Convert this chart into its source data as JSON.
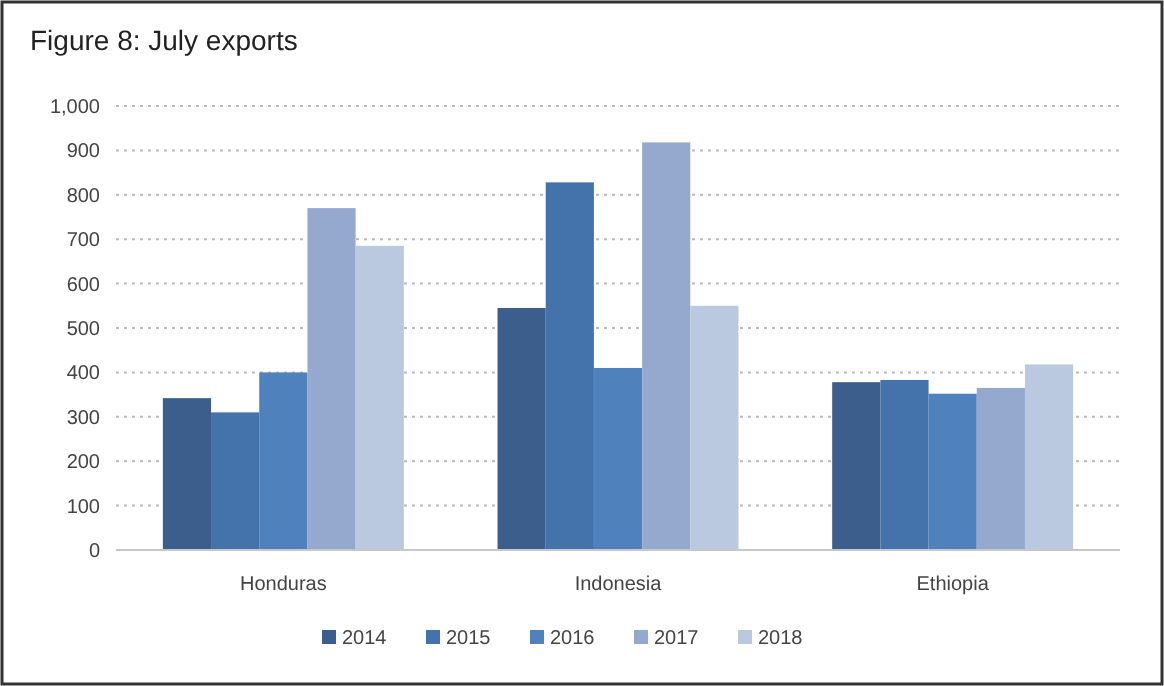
{
  "chart_data": {
    "type": "bar",
    "title": "Figure 8: July exports",
    "categories": [
      "Honduras",
      "Indonesia",
      "Ethiopia"
    ],
    "series": [
      {
        "name": "2014",
        "color": "#3b5e8c",
        "values": [
          342,
          545,
          378
        ]
      },
      {
        "name": "2015",
        "color": "#4472aa",
        "values": [
          310,
          828,
          383
        ]
      },
      {
        "name": "2016",
        "color": "#4f81bd",
        "values": [
          400,
          410,
          352
        ]
      },
      {
        "name": "2017",
        "color": "#95a9cf",
        "values": [
          770,
          918,
          365
        ]
      },
      {
        "name": "2018",
        "color": "#bac8e0",
        "values": [
          685,
          550,
          418
        ]
      }
    ],
    "ylim": [
      0,
      1000
    ],
    "yticks": [
      0,
      {
        "value": 100,
        "label": "100"
      },
      {
        "value": 200,
        "label": "200"
      },
      {
        "value": 300,
        "label": "300"
      },
      {
        "value": 400,
        "label": "400"
      },
      {
        "value": 500,
        "label": "500"
      },
      {
        "value": 600,
        "label": "600"
      },
      {
        "value": 700,
        "label": "700"
      },
      {
        "value": 800,
        "label": "800"
      },
      {
        "value": 900,
        "label": "900"
      },
      {
        "value": 1000,
        "label": "1,000"
      }
    ],
    "grid": "y",
    "legend": "bottom"
  }
}
